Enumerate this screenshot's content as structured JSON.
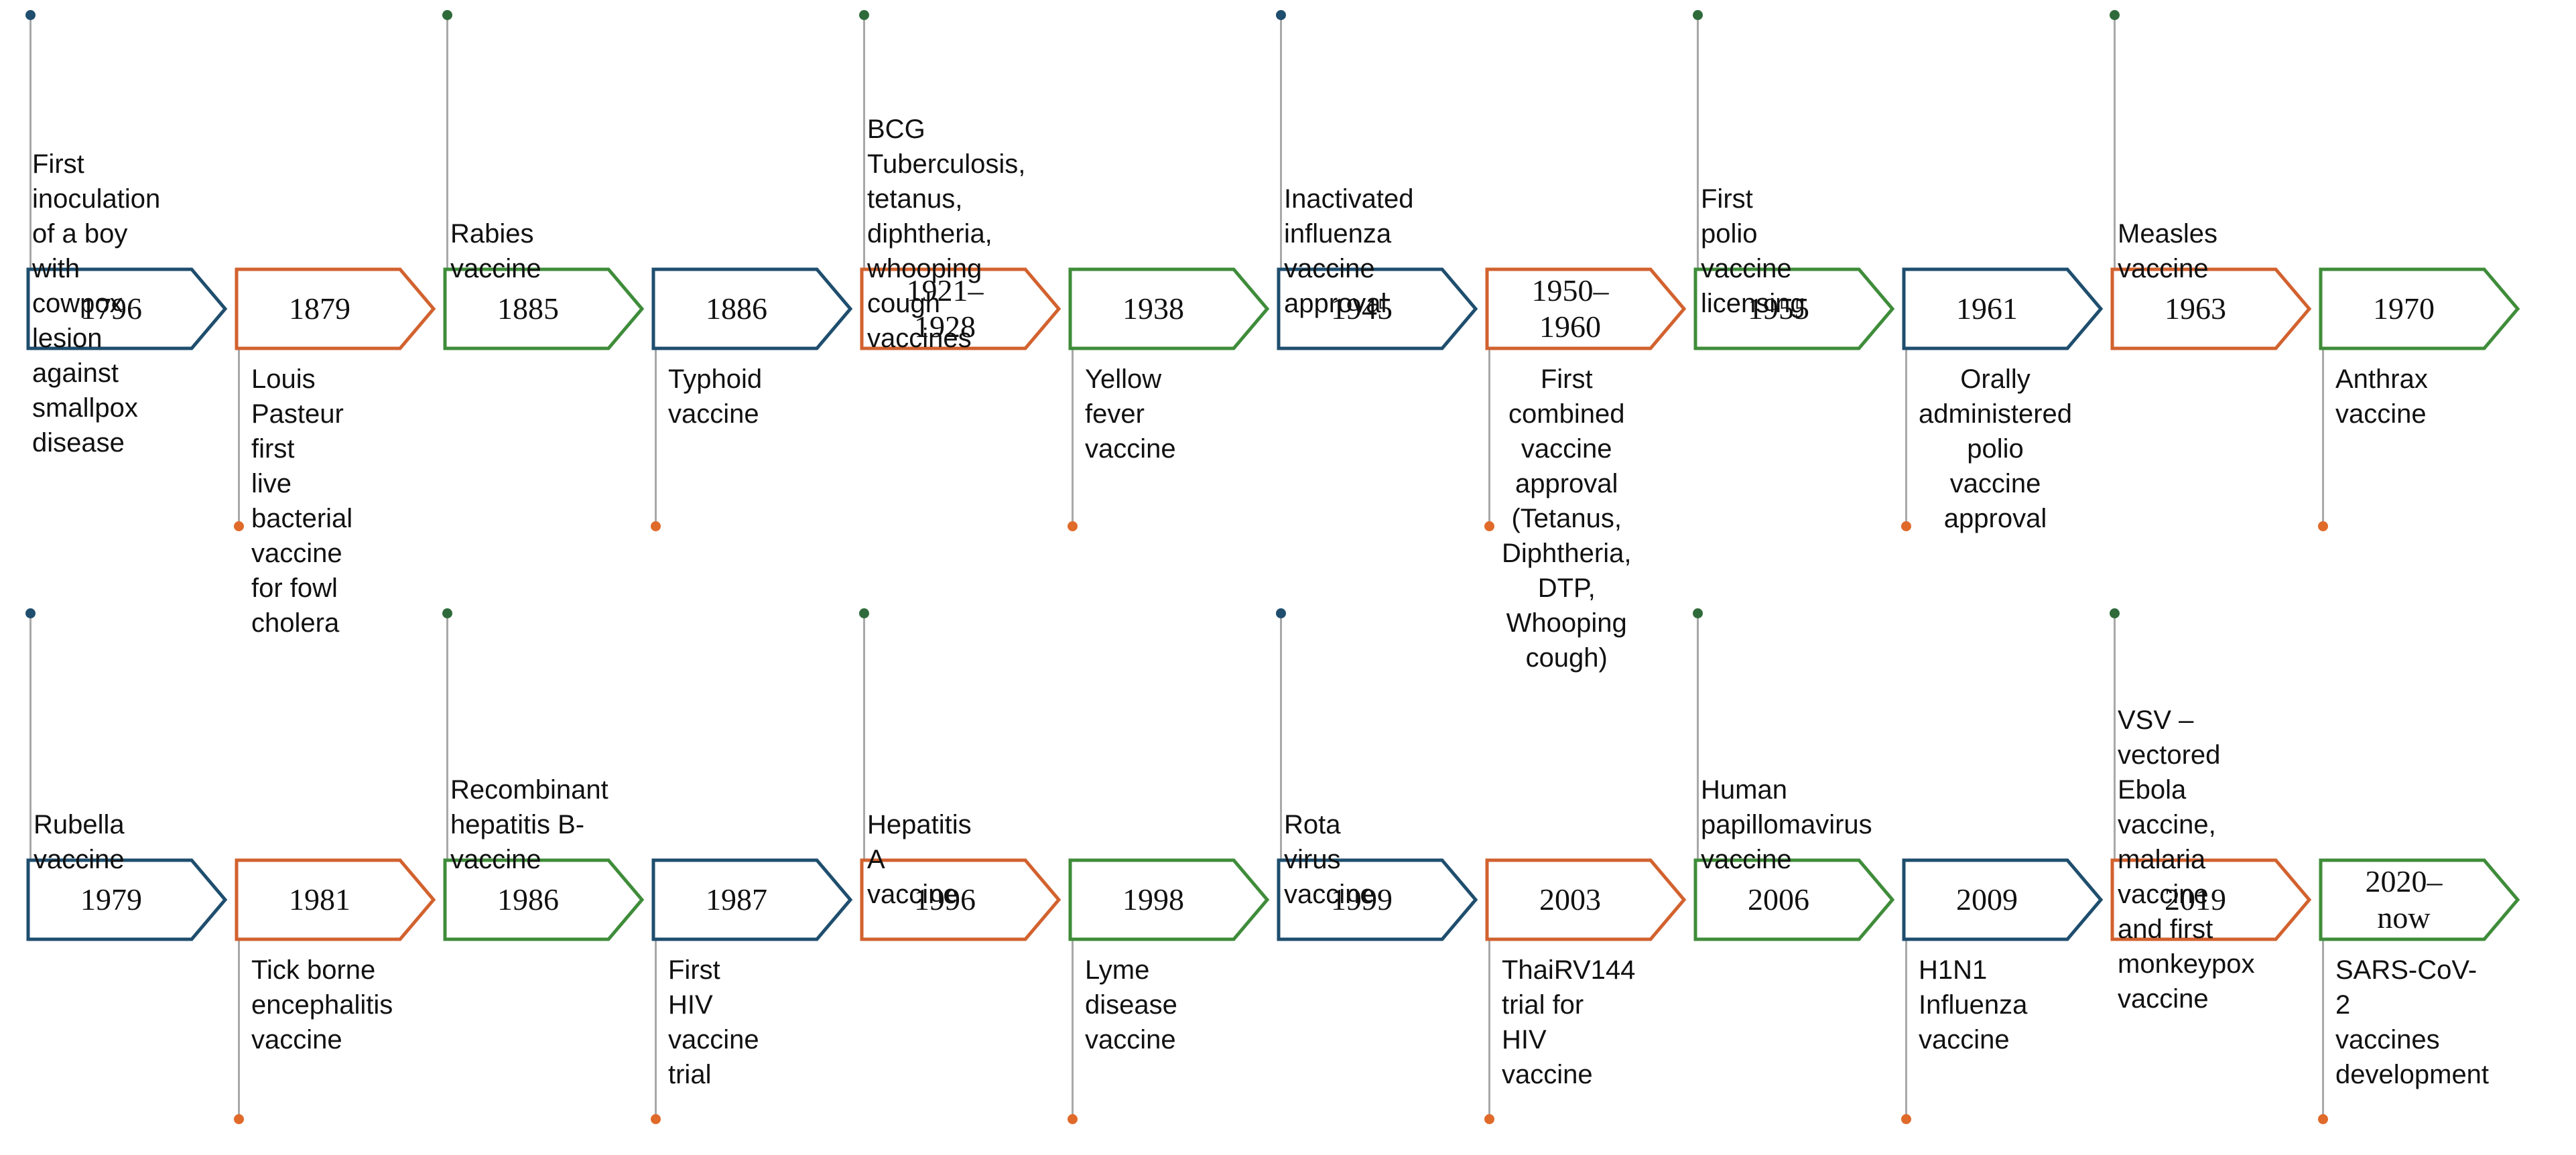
{
  "colors": {
    "blue": "#1f4e6e",
    "orange": "#d2622f",
    "green": "#3f8c3a",
    "stem": "#a8a8a8"
  },
  "rows": [
    [
      {
        "year": "1796",
        "color": "blue",
        "label_pos": "above",
        "label": "First inoculation of a boy\nwith cowpox lesion\nagainst smallpox disease"
      },
      {
        "year": "1879",
        "color": "orange",
        "label_pos": "below",
        "label": "Louis Pasteur first\nlive bacterial vaccine\nfor fowl cholera"
      },
      {
        "year": "1885",
        "color": "green",
        "label_pos": "above",
        "label": "Rabies vaccine"
      },
      {
        "year": "1886",
        "color": "blue",
        "label_pos": "below",
        "label": "Typhoid vaccine"
      },
      {
        "year": "1921–\n1928",
        "color": "orange",
        "label_pos": "above",
        "label": "BCG Tuberculosis,\ntetanus, diphtheria,\nwhooping cough\nvaccines"
      },
      {
        "year": "1938",
        "color": "green",
        "label_pos": "below",
        "label": "Yellow fever vaccine"
      },
      {
        "year": "1945",
        "color": "blue",
        "label_pos": "above",
        "label": "Inactivated influenza\nvaccine approval"
      },
      {
        "year": "1950–\n1960",
        "color": "orange",
        "label_pos": "below",
        "label": "First combined\nvaccine approval\n(Tetanus,\nDiphtheria, DTP,\nWhooping cough)"
      },
      {
        "year": "1955",
        "color": "green",
        "label_pos": "above",
        "label": "First polio vaccine\nlicensing"
      },
      {
        "year": "1961",
        "color": "blue",
        "label_pos": "below",
        "label": "Orally administered\npolio vaccine\napproval"
      },
      {
        "year": "1963",
        "color": "orange",
        "label_pos": "above",
        "label": "Measles vaccine"
      },
      {
        "year": "1970",
        "color": "green",
        "label_pos": "below",
        "label": "Anthrax vaccine"
      }
    ],
    [
      {
        "year": "1979",
        "color": "blue",
        "label_pos": "above",
        "label": "Rubella vaccine"
      },
      {
        "year": "1981",
        "color": "orange",
        "label_pos": "below",
        "label": "Tick borne\nencephalitis vaccine"
      },
      {
        "year": "1986",
        "color": "green",
        "label_pos": "above",
        "label": "Recombinant\nhepatitis B-vaccine"
      },
      {
        "year": "1987",
        "color": "blue",
        "label_pos": "below",
        "label": "First HIV vaccine trial"
      },
      {
        "year": "1996",
        "color": "orange",
        "label_pos": "above",
        "label": "Hepatitis A vaccine"
      },
      {
        "year": "1998",
        "color": "green",
        "label_pos": "below",
        "label": "Lyme disease\nvaccine"
      },
      {
        "year": "1999",
        "color": "blue",
        "label_pos": "above",
        "label": "Rota virus vaccine"
      },
      {
        "year": "2003",
        "color": "orange",
        "label_pos": "below",
        "label": "ThaiRV144 trial for\nHIV vaccine"
      },
      {
        "year": "2006",
        "color": "green",
        "label_pos": "above",
        "label": "Human papillomavirus\nvaccine"
      },
      {
        "year": "2009",
        "color": "blue",
        "label_pos": "below",
        "label": "H1N1 Influenza\nvaccine"
      },
      {
        "year": "2019",
        "color": "orange",
        "label_pos": "above",
        "label": "VSV – vectored Ebola\nvaccine, malaria vaccine\nand first monkeypox\nvaccine"
      },
      {
        "year": "2020–\nnow",
        "color": "green",
        "label_pos": "below",
        "label": "SARS-CoV-2\nvaccines\ndevelopment"
      }
    ]
  ]
}
